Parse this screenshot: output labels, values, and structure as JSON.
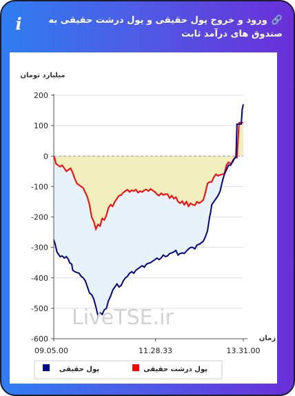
{
  "header": {
    "title": "ورود و خروج پول حقیقی و پول درشت حقیقی به صندوق های درآمد ثابت",
    "link_icon": "link-icon",
    "info_icon": "info-icon",
    "info_glyph": "i",
    "link_glyph": "🔗"
  },
  "watermark": "LiveTSE.ir",
  "chart_data": {
    "type": "area",
    "ylabel": "میلیارد تومان",
    "xlabel": "زمان",
    "ylim": [
      -600,
      200
    ],
    "yticks": [
      200,
      100,
      0,
      -100,
      -200,
      -300,
      -400,
      -500,
      -600
    ],
    "x_ticks": [
      "09.05.00",
      "11.28.33",
      "13.31.00"
    ],
    "grid": "horizontal",
    "legend_position": "bottom",
    "series": [
      {
        "name": "پول حقیقی",
        "color": "#00008b",
        "fill": "#e8f2fb",
        "points": [
          [
            0,
            -275
          ],
          [
            0.5,
            -285
          ],
          [
            1,
            -300
          ],
          [
            1.5,
            -315
          ],
          [
            2,
            -320
          ],
          [
            3,
            -330
          ],
          [
            4,
            -328
          ],
          [
            5,
            -335
          ],
          [
            6,
            -330
          ],
          [
            7,
            -340
          ],
          [
            7.5,
            -350
          ],
          [
            8.5,
            -355
          ],
          [
            9,
            -375
          ],
          [
            10,
            -380
          ],
          [
            12,
            -385
          ],
          [
            13,
            -395
          ],
          [
            14,
            -400
          ],
          [
            15,
            -410
          ],
          [
            16,
            -430
          ],
          [
            17,
            -450
          ],
          [
            18,
            -455
          ],
          [
            19,
            -470
          ],
          [
            20,
            -495
          ],
          [
            21,
            -525
          ],
          [
            22,
            -515
          ],
          [
            23,
            -520
          ],
          [
            24,
            -505
          ],
          [
            25,
            -500
          ],
          [
            26,
            -475
          ],
          [
            27,
            -460
          ],
          [
            28,
            -440
          ],
          [
            29,
            -430
          ],
          [
            30,
            -420
          ],
          [
            31,
            -430
          ],
          [
            32,
            -425
          ],
          [
            33,
            -410
          ],
          [
            34,
            -400
          ],
          [
            35,
            -395
          ],
          [
            36,
            -385
          ],
          [
            37,
            -380
          ],
          [
            38,
            -385
          ],
          [
            39,
            -375
          ],
          [
            40,
            -370
          ],
          [
            41,
            -365
          ],
          [
            42,
            -360
          ],
          [
            43,
            -365
          ],
          [
            44,
            -355
          ],
          [
            45,
            -352
          ],
          [
            46,
            -350
          ],
          [
            47,
            -345
          ],
          [
            48,
            -340
          ],
          [
            49,
            -335
          ],
          [
            50,
            -340
          ],
          [
            51,
            -335
          ],
          [
            52,
            -325
          ],
          [
            53,
            -330
          ],
          [
            54,
            -328
          ],
          [
            55,
            -320
          ],
          [
            56,
            -318
          ],
          [
            57,
            -315
          ],
          [
            58,
            -310
          ],
          [
            59,
            -325
          ],
          [
            60,
            -320
          ],
          [
            61,
            -318
          ],
          [
            62,
            -320
          ],
          [
            63,
            -312
          ],
          [
            64,
            -305
          ],
          [
            65,
            -300
          ],
          [
            66,
            -300
          ],
          [
            67,
            -305
          ],
          [
            68,
            -292
          ],
          [
            69,
            -290
          ],
          [
            70,
            -285
          ],
          [
            71,
            -280
          ],
          [
            72,
            -265
          ],
          [
            73,
            -245
          ],
          [
            74,
            -200
          ],
          [
            74.5,
            -185
          ],
          [
            75,
            -160
          ],
          [
            76,
            -150
          ],
          [
            77,
            -140
          ],
          [
            78,
            -130
          ],
          [
            79,
            -115
          ],
          [
            80,
            -85
          ],
          [
            81,
            -60
          ],
          [
            82,
            -45
          ],
          [
            83,
            -30
          ],
          [
            84,
            -30
          ],
          [
            85,
            -15
          ],
          [
            86,
            -5
          ],
          [
            86.5,
            -5
          ],
          [
            87,
            105
          ],
          [
            89,
            105
          ],
          [
            89.5,
            155
          ],
          [
            90,
            170
          ]
        ]
      },
      {
        "name": "پول درشت حقیقی",
        "color": "#ff0000",
        "fill": "#f2eebe",
        "points": [
          [
            0,
            0
          ],
          [
            0.5,
            -8
          ],
          [
            1,
            -25
          ],
          [
            2,
            -30
          ],
          [
            3,
            -35
          ],
          [
            4,
            -30
          ],
          [
            5,
            -40
          ],
          [
            6,
            -50
          ],
          [
            7,
            -45
          ],
          [
            8,
            -40
          ],
          [
            9,
            -55
          ],
          [
            10,
            -75
          ],
          [
            11,
            -90
          ],
          [
            12,
            -95
          ],
          [
            13,
            -100
          ],
          [
            14,
            -105
          ],
          [
            15,
            -120
          ],
          [
            16,
            -135
          ],
          [
            17,
            -160
          ],
          [
            18,
            -200
          ],
          [
            19,
            -215
          ],
          [
            20,
            -240
          ],
          [
            21,
            -225
          ],
          [
            22,
            -230
          ],
          [
            23,
            -205
          ],
          [
            24,
            -210
          ],
          [
            25,
            -195
          ],
          [
            26,
            -170
          ],
          [
            27,
            -160
          ],
          [
            28,
            -165
          ],
          [
            29,
            -150
          ],
          [
            30,
            -140
          ],
          [
            31,
            -130
          ],
          [
            32,
            -128
          ],
          [
            33,
            -120
          ],
          [
            34,
            -115
          ],
          [
            35,
            -110
          ],
          [
            36,
            -118
          ],
          [
            37,
            -112
          ],
          [
            38,
            -115
          ],
          [
            39,
            -110
          ],
          [
            40,
            -120
          ],
          [
            41,
            -115
          ],
          [
            42,
            -118
          ],
          [
            43,
            -112
          ],
          [
            44,
            -110
          ],
          [
            45,
            -115
          ],
          [
            46,
            -108
          ],
          [
            47,
            -113
          ],
          [
            48,
            -118
          ],
          [
            49,
            -125
          ],
          [
            50,
            -130
          ],
          [
            51,
            -122
          ],
          [
            52,
            -128
          ],
          [
            53,
            -125
          ],
          [
            54,
            -125
          ],
          [
            55,
            -138
          ],
          [
            56,
            -130
          ],
          [
            57,
            -140
          ],
          [
            58,
            -135
          ],
          [
            59,
            -150
          ],
          [
            60,
            -155
          ],
          [
            61,
            -148
          ],
          [
            62,
            -160
          ],
          [
            63,
            -150
          ],
          [
            64,
            -165
          ],
          [
            65,
            -155
          ],
          [
            66,
            -160
          ],
          [
            67,
            -162
          ],
          [
            68,
            -150
          ],
          [
            69,
            -155
          ],
          [
            70,
            -150
          ],
          [
            71,
            -145
          ],
          [
            72,
            -120
          ],
          [
            73,
            -90
          ],
          [
            74,
            -85
          ],
          [
            75,
            -85
          ],
          [
            76,
            -70
          ],
          [
            77,
            -60
          ],
          [
            78,
            -65
          ],
          [
            79,
            -62
          ],
          [
            80,
            -60
          ],
          [
            81,
            -58
          ],
          [
            82,
            -30
          ],
          [
            83,
            -20
          ],
          [
            84,
            -25
          ],
          [
            85,
            -20
          ],
          [
            86,
            -5
          ],
          [
            87,
            -5
          ],
          [
            88,
            110
          ],
          [
            90,
            110
          ]
        ]
      }
    ]
  }
}
